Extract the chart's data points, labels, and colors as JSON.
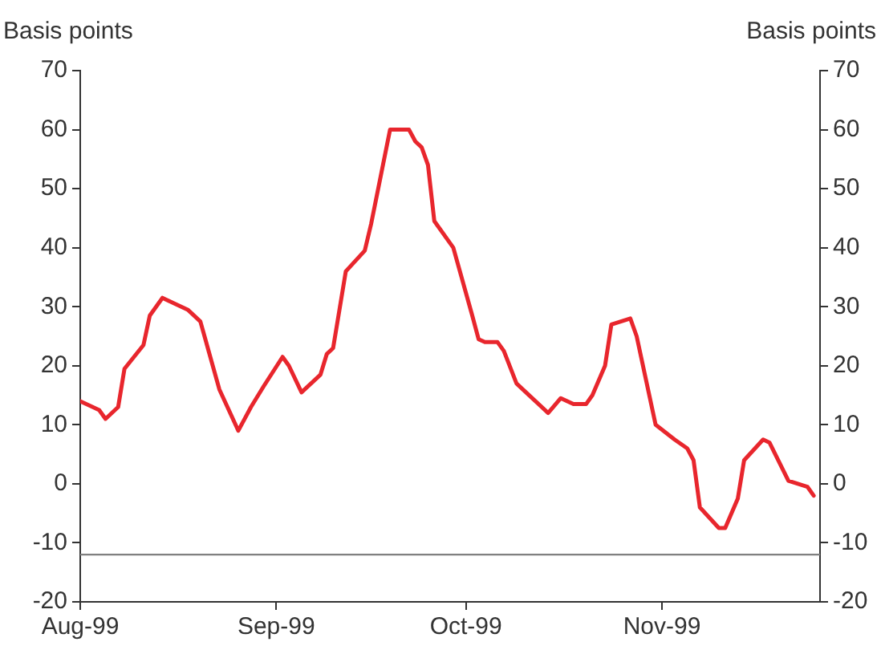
{
  "chart_data": {
    "type": "line",
    "ylabel": "Basis points",
    "y2label": "Basis points",
    "x": [
      "1999-08-01",
      "1999-08-04",
      "1999-08-05",
      "1999-08-07",
      "1999-08-08",
      "1999-08-11",
      "1999-08-12",
      "1999-08-14",
      "1999-08-18",
      "1999-08-20",
      "1999-08-23",
      "1999-08-26",
      "1999-08-28",
      "1999-08-30",
      "1999-09-02",
      "1999-09-03",
      "1999-09-05",
      "1999-09-08",
      "1999-09-09",
      "1999-09-10",
      "1999-09-11",
      "1999-09-12",
      "1999-09-15",
      "1999-09-16",
      "1999-09-19",
      "1999-09-22",
      "1999-09-23",
      "1999-09-24",
      "1999-09-25",
      "1999-09-26",
      "1999-09-29",
      "1999-10-02",
      "1999-10-03",
      "1999-10-04",
      "1999-10-06",
      "1999-10-07",
      "1999-10-09",
      "1999-10-11",
      "1999-10-14",
      "1999-10-16",
      "1999-10-18",
      "1999-10-20",
      "1999-10-21",
      "1999-10-23",
      "1999-10-24",
      "1999-10-27",
      "1999-10-28",
      "1999-10-31",
      "1999-11-03",
      "1999-11-05",
      "1999-11-06",
      "1999-11-07",
      "1999-11-10",
      "1999-11-11",
      "1999-11-13",
      "1999-11-14",
      "1999-11-17",
      "1999-11-18",
      "1999-11-21",
      "1999-11-24",
      "1999-11-25"
    ],
    "series": [
      {
        "color": "#e8262d",
        "values": [
          14,
          12.5,
          11,
          13,
          19.5,
          23.5,
          28.5,
          31.5,
          29.5,
          27.5,
          16,
          9,
          13,
          16.5,
          21.5,
          20,
          15.5,
          18.5,
          22,
          23,
          29.5,
          36,
          39.5,
          44,
          60,
          60,
          58,
          57,
          54,
          44.5,
          40,
          28.5,
          24.5,
          24,
          24,
          22.5,
          17,
          15,
          12,
          14.5,
          13.5,
          13.5,
          15,
          20,
          27,
          28,
          25,
          10,
          7.5,
          6,
          4,
          -4,
          -7.5,
          -7.5,
          -2.5,
          4,
          7.5,
          7,
          0.5,
          -0.5,
          -2
        ]
      }
    ],
    "xlim": [
      "1999-08-01",
      "1999-11-26"
    ],
    "xticks": [
      {
        "value": "1999-08-01",
        "label": "Aug-99"
      },
      {
        "value": "1999-09-01",
        "label": "Sep-99"
      },
      {
        "value": "1999-10-01",
        "label": "Oct-99"
      },
      {
        "value": "1999-11-01",
        "label": "Nov-99"
      }
    ],
    "ylim": [
      -20,
      70
    ],
    "yticks": [
      -20,
      -10,
      0,
      10,
      20,
      30,
      40,
      50,
      60,
      70
    ],
    "y2lim": [
      -20,
      70
    ],
    "y2ticks": [
      -20,
      -10,
      0,
      10,
      20,
      30,
      40,
      50,
      60,
      70
    ],
    "ref_lines": [
      {
        "axis": "y",
        "value": -12,
        "color": "#808080"
      }
    ],
    "grid": false,
    "legend": false,
    "marker": "none",
    "line_style": "solid"
  }
}
